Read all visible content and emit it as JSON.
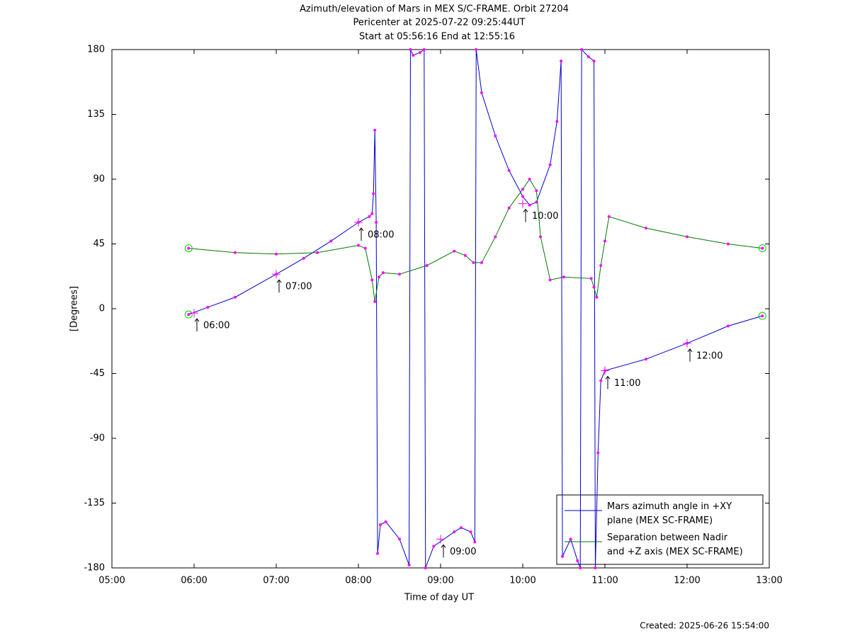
{
  "chart_data": {
    "type": "line",
    "title": "Azimuth/elevation of Mars in MEX S/C-FRAME.  Orbit 27204",
    "subtitle": [
      "Pericenter at 2025-07-22 09:25:44UT",
      "Start at 05:56:16 End at 12:55:16"
    ],
    "x_label": "Time of day UT",
    "y_label": "[Degrees]",
    "caption": "Created: 2025-06-26 15:54:00",
    "xlim": [
      300,
      780
    ],
    "xticks": [
      {
        "value": 300,
        "label": "05:00"
      },
      {
        "value": 360,
        "label": "06:00"
      },
      {
        "value": 420,
        "label": "07:00"
      },
      {
        "value": 480,
        "label": "08:00"
      },
      {
        "value": 540,
        "label": "09:00"
      },
      {
        "value": 600,
        "label": "10:00"
      },
      {
        "value": 660,
        "label": "11:00"
      },
      {
        "value": 720,
        "label": "12:00"
      },
      {
        "value": 780,
        "label": "13:00"
      }
    ],
    "ylim": [
      -180,
      180
    ],
    "yticks": [
      180,
      135,
      90,
      45,
      0,
      -45,
      -90,
      -135,
      -180
    ],
    "legend": "lower right",
    "marker_color": "#ff00ff",
    "endpoint_color": "#00cc00",
    "series": [
      {
        "name": "Mars azimuth angle in +XY\nplane (MEX SC-FRAME)",
        "color": "#0000cc",
        "x": [
          356,
          370,
          390,
          420,
          440,
          460,
          480,
          488,
          490,
          491,
          492,
          493,
          494,
          496,
          500,
          510,
          517,
          518,
          520,
          525,
          528,
          529,
          535,
          550,
          555,
          562,
          565,
          566,
          570,
          580,
          590,
          600,
          605,
          610,
          620,
          625,
          628,
          629,
          635,
          640,
          642,
          643,
          648,
          652,
          653,
          655,
          657,
          660,
          690,
          720,
          750,
          775
        ],
        "values": [
          -4,
          1,
          8,
          24,
          35,
          47,
          60,
          64,
          66,
          80,
          124,
          60,
          -170,
          -150,
          -148,
          -160,
          -178,
          180,
          176,
          178,
          180,
          -180,
          -165,
          -155,
          -152,
          -155,
          -162,
          180,
          150,
          120,
          96,
          78,
          72,
          74,
          100,
          130,
          172,
          -172,
          -160,
          -175,
          -180,
          180,
          175,
          172,
          -180,
          -100,
          -50,
          -43,
          -35,
          -24,
          -12,
          -5
        ]
      },
      {
        "name": "Separation between Nadir\nand +Z axis (MEX SC-FRAME)",
        "color": "#007700",
        "x": [
          356,
          390,
          420,
          450,
          480,
          485,
          490,
          492,
          495,
          498,
          510,
          530,
          550,
          558,
          564,
          570,
          580,
          590,
          600,
          605,
          610,
          613,
          620,
          630,
          650,
          652,
          654,
          657,
          660,
          663,
          690,
          720,
          750,
          775
        ],
        "values": [
          42,
          39,
          38,
          39,
          44,
          42,
          20,
          5,
          22,
          25,
          24,
          30,
          40,
          37,
          32,
          32,
          50,
          70,
          83,
          90,
          82,
          50,
          20,
          22,
          21,
          15,
          8,
          30,
          47,
          64,
          56,
          50,
          45,
          42
        ]
      }
    ],
    "annotations": [
      {
        "text": "06:00",
        "x": 360,
        "y": -3
      },
      {
        "text": "07:00",
        "x": 420,
        "y": 24
      },
      {
        "text": "08:00",
        "x": 480,
        "y": 60
      },
      {
        "text": "09:00",
        "x": 540,
        "y": -160
      },
      {
        "text": "10:00",
        "x": 600,
        "y": 73
      },
      {
        "text": "11:00",
        "x": 660,
        "y": -43
      },
      {
        "text": "12:00",
        "x": 720,
        "y": -24
      }
    ]
  }
}
